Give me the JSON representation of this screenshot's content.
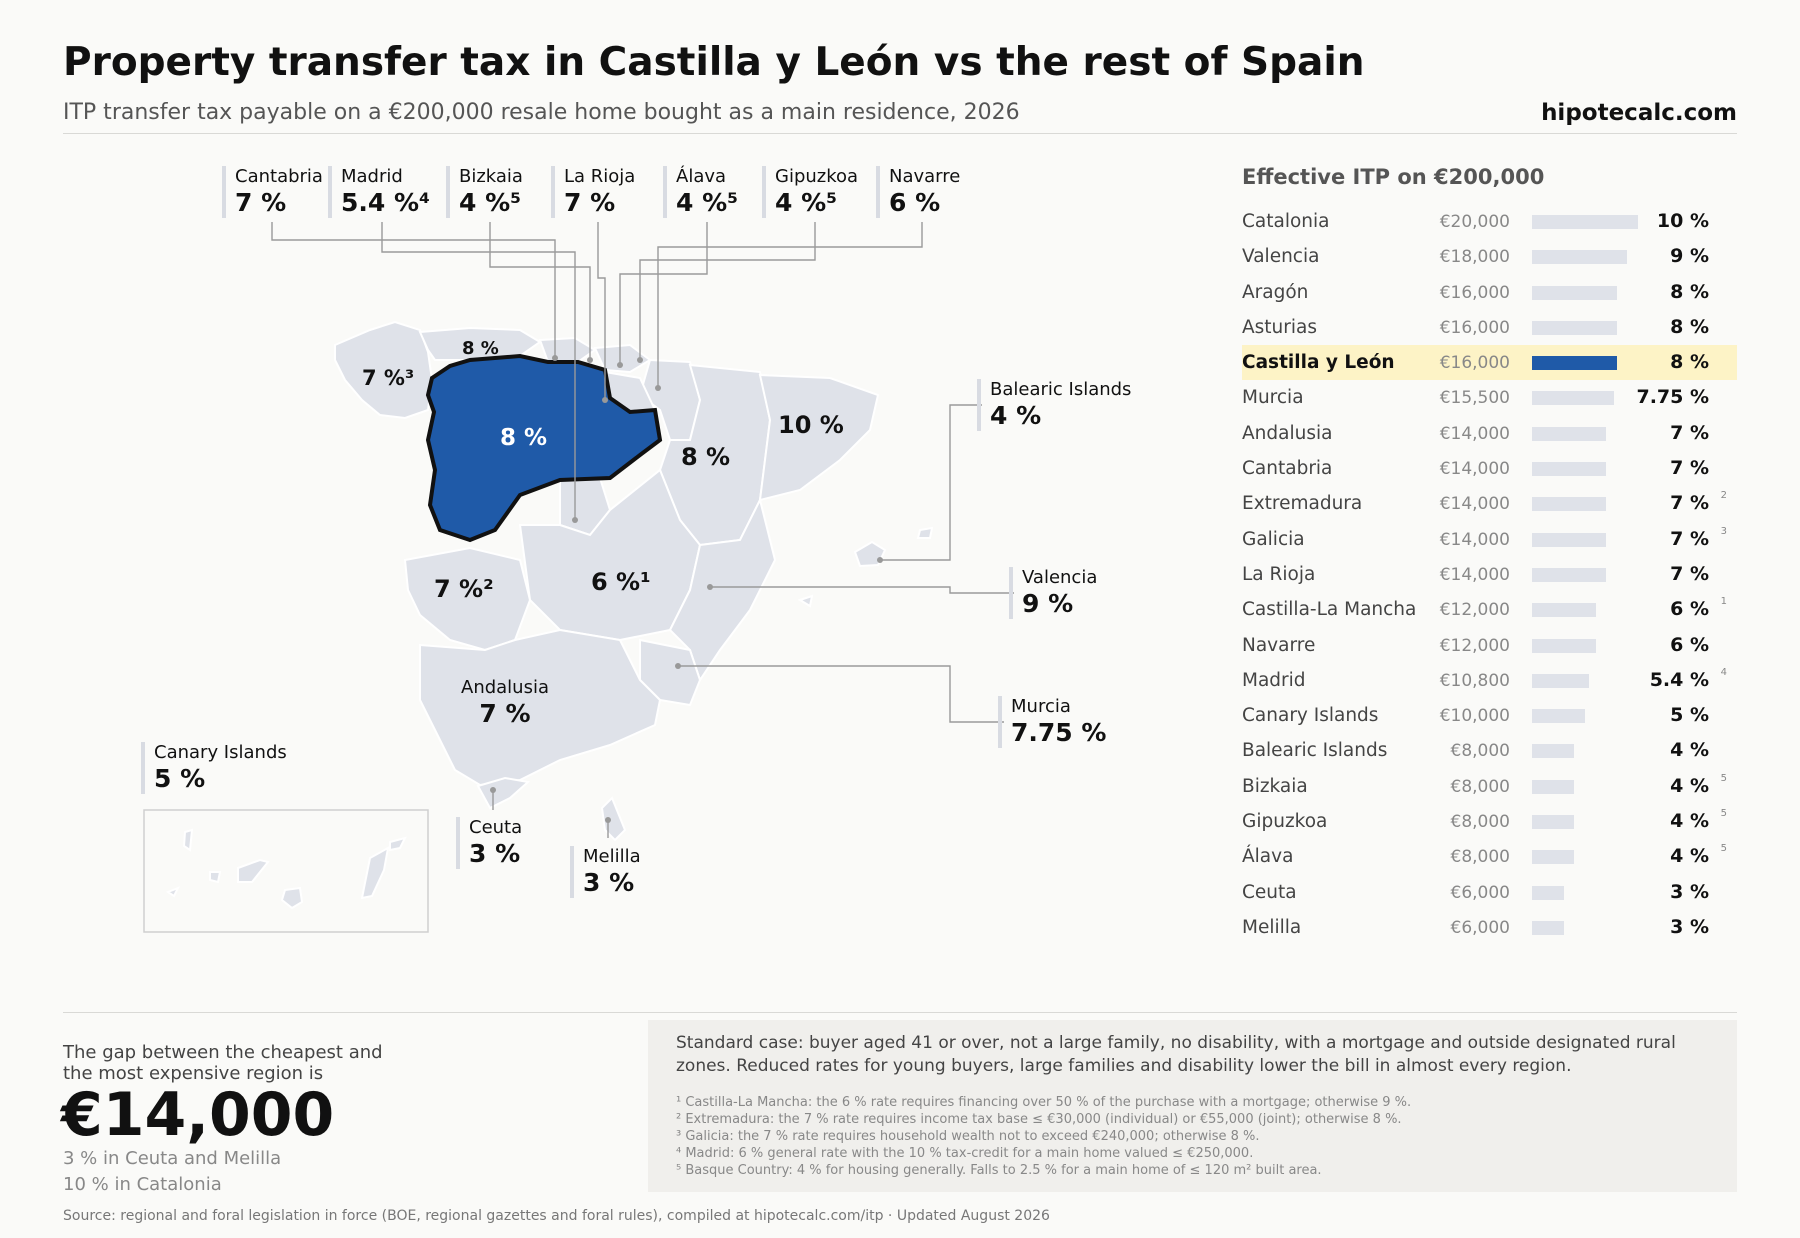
{
  "header": {
    "title": "Property transfer tax in Castilla y León vs the rest of Spain",
    "subtitle": "ITP transfer tax payable on a €200,000 resale home bought as a main residence, 2026",
    "brand": "hipotecalc.com"
  },
  "map": {
    "inline_labels": {
      "galicia": "7 %³",
      "asturias": "8 %",
      "cyl": "8 %",
      "aragon": "8 %",
      "catalonia": "10 %",
      "extremadura": "7 %²",
      "clm": "6 %¹"
    },
    "callouts": {
      "cantabria": {
        "name": "Cantabria",
        "pct": "7 %"
      },
      "madrid": {
        "name": "Madrid",
        "pct": "5.4 %⁴"
      },
      "bizkaia": {
        "name": "Bizkaia",
        "pct": "4 %⁵"
      },
      "la_rioja": {
        "name": "La Rioja",
        "pct": "7 %"
      },
      "alava": {
        "name": "Álava",
        "pct": "4 %⁵"
      },
      "gipuzkoa": {
        "name": "Gipuzkoa",
        "pct": "4 %⁵"
      },
      "navarre": {
        "name": "Navarre",
        "pct": "6 %"
      },
      "balearic": {
        "name": "Balearic Islands",
        "pct": "4 %"
      },
      "valencia": {
        "name": "Valencia",
        "pct": "9 %"
      },
      "murcia": {
        "name": "Murcia",
        "pct": "7.75 %"
      },
      "andalusia": {
        "name": "Andalusia",
        "pct": "7 %"
      },
      "canary": {
        "name": "Canary Islands",
        "pct": "5 %"
      },
      "ceuta": {
        "name": "Ceuta",
        "pct": "3 %"
      },
      "melilla": {
        "name": "Melilla",
        "pct": "3 %"
      }
    },
    "colors": {
      "highlight": "#1f5aa8",
      "region": "#dfe2e9"
    }
  },
  "ranking": {
    "title": "Effective ITP on €200,000",
    "highlight": "Castilla y León",
    "rows": [
      {
        "name": "Catalonia",
        "amount": "€20,000",
        "pct": "10 %",
        "rate": 10,
        "note": ""
      },
      {
        "name": "Valencia",
        "amount": "€18,000",
        "pct": "9 %",
        "rate": 9,
        "note": ""
      },
      {
        "name": "Aragón",
        "amount": "€16,000",
        "pct": "8 %",
        "rate": 8,
        "note": ""
      },
      {
        "name": "Asturias",
        "amount": "€16,000",
        "pct": "8 %",
        "rate": 8,
        "note": ""
      },
      {
        "name": "Castilla y León",
        "amount": "€16,000",
        "pct": "8 %",
        "rate": 8,
        "note": ""
      },
      {
        "name": "Murcia",
        "amount": "€15,500",
        "pct": "7.75 %",
        "rate": 7.75,
        "note": ""
      },
      {
        "name": "Andalusia",
        "amount": "€14,000",
        "pct": "7 %",
        "rate": 7,
        "note": ""
      },
      {
        "name": "Cantabria",
        "amount": "€14,000",
        "pct": "7 %",
        "rate": 7,
        "note": ""
      },
      {
        "name": "Extremadura",
        "amount": "€14,000",
        "pct": "7 %",
        "rate": 7,
        "note": "2"
      },
      {
        "name": "Galicia",
        "amount": "€14,000",
        "pct": "7 %",
        "rate": 7,
        "note": "3"
      },
      {
        "name": "La Rioja",
        "amount": "€14,000",
        "pct": "7 %",
        "rate": 7,
        "note": ""
      },
      {
        "name": "Castilla-La Mancha",
        "amount": "€12,000",
        "pct": "6 %",
        "rate": 6,
        "note": "1"
      },
      {
        "name": "Navarre",
        "amount": "€12,000",
        "pct": "6 %",
        "rate": 6,
        "note": ""
      },
      {
        "name": "Madrid",
        "amount": "€10,800",
        "pct": "5.4 %",
        "rate": 5.4,
        "note": "4"
      },
      {
        "name": "Canary Islands",
        "amount": "€10,000",
        "pct": "5 %",
        "rate": 5,
        "note": ""
      },
      {
        "name": "Balearic Islands",
        "amount": "€8,000",
        "pct": "4 %",
        "rate": 4,
        "note": ""
      },
      {
        "name": "Bizkaia",
        "amount": "€8,000",
        "pct": "4 %",
        "rate": 4,
        "note": "5"
      },
      {
        "name": "Gipuzkoa",
        "amount": "€8,000",
        "pct": "4 %",
        "rate": 4,
        "note": "5"
      },
      {
        "name": "Álava",
        "amount": "€8,000",
        "pct": "4 %",
        "rate": 4,
        "note": "5"
      },
      {
        "name": "Ceuta",
        "amount": "€6,000",
        "pct": "3 %",
        "rate": 3,
        "note": ""
      },
      {
        "name": "Melilla",
        "amount": "€6,000",
        "pct": "3 %",
        "rate": 3,
        "note": ""
      }
    ]
  },
  "gap": {
    "label": "The gap between the cheapest and the most expensive region is",
    "value": "€14,000",
    "min": "3 % in Ceuta and Melilla",
    "max": "10 % in Catalonia"
  },
  "notes": {
    "main": "Standard case: buyer aged 41 or over, not a large family, no disability, with a mortgage and outside designated rural zones. Reduced rates for young buyers, large families and disability lower the bill in almost every region.",
    "footnotes": [
      "¹ Castilla-La Mancha: the 6 % rate requires financing over 50 % of the purchase with a mortgage; otherwise 9 %.",
      "² Extremadura: the 7 % rate requires income tax base ≤ €30,000 (individual) or €55,000 (joint); otherwise 8 %.",
      "³ Galicia: the 7 % rate requires household wealth not to exceed €240,000; otherwise 8 %.",
      "⁴ Madrid: 6 % general rate with the 10 % tax-credit for a main home valued ≤ €250,000.",
      "⁵ Basque Country: 4 % for housing generally. Falls to 2.5 % for a main home of ≤ 120 m² built area."
    ]
  },
  "source": "Source: regional and foral legislation in force (BOE, regional gazettes and foral rules), compiled at hipotecalc.com/itp · Updated August 2026"
}
